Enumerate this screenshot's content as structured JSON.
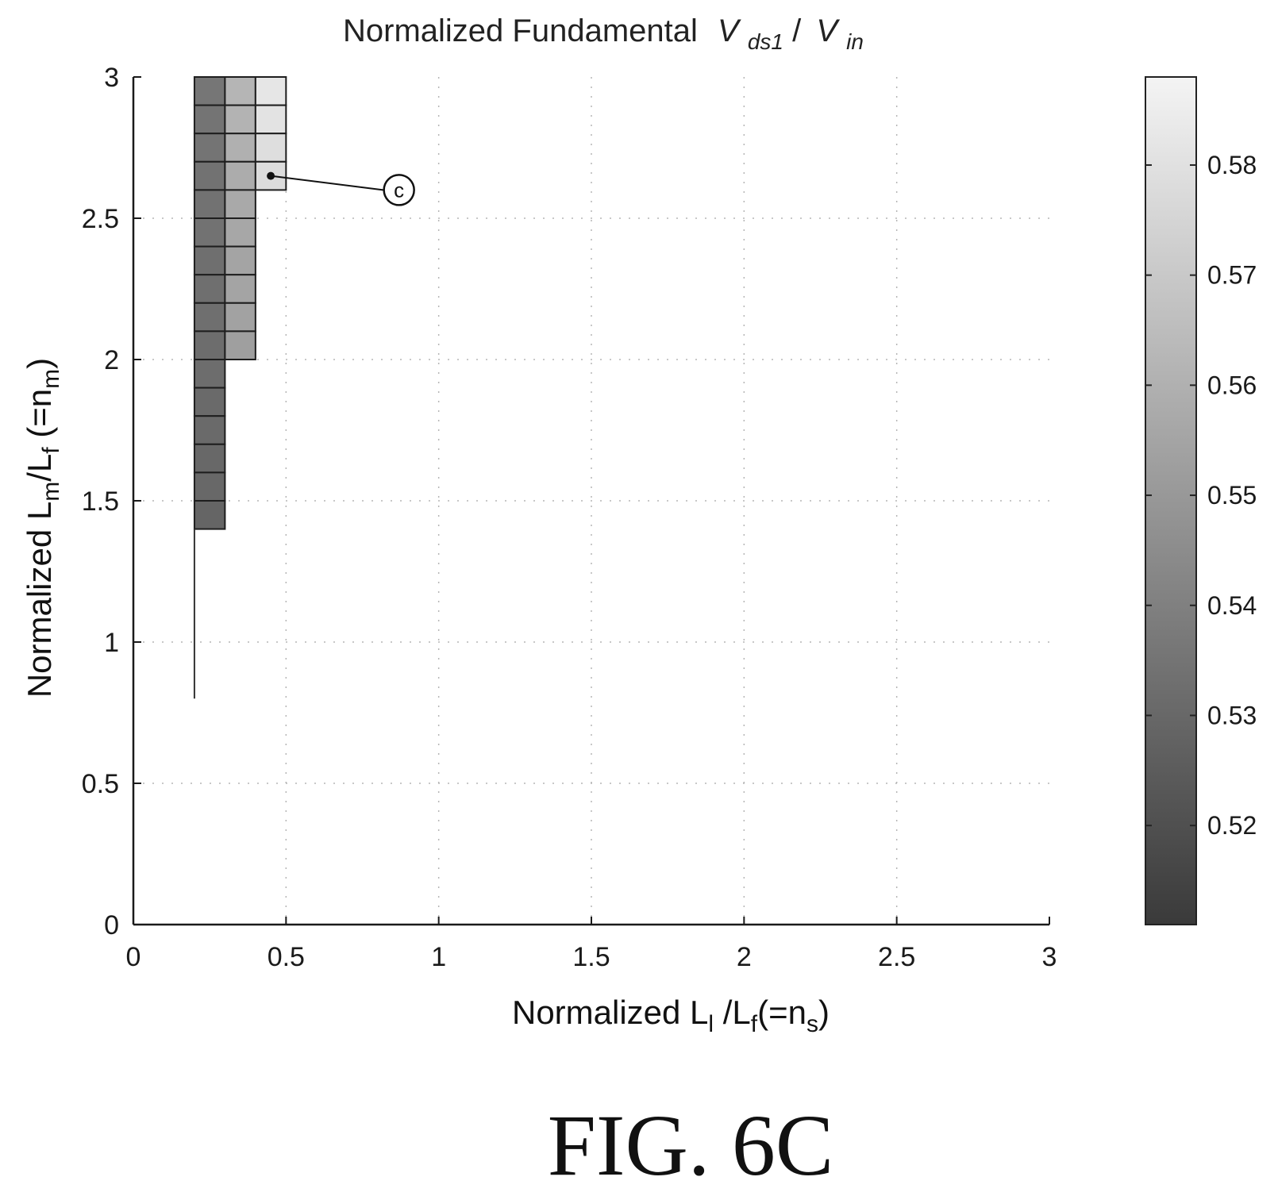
{
  "chart_data": {
    "type": "heatmap",
    "title_text": "Normalized Fundamental",
    "title_var1": "V",
    "title_var1_sub": "ds1",
    "title_sep": "/",
    "title_var2": "V",
    "title_var2_sub": "in",
    "xlabel": {
      "prefix": "Normalized L",
      "sub1": "l",
      "mid": " /L",
      "sub2": "f",
      "eq": "(=n",
      "sub3": "s",
      "close": ")"
    },
    "ylabel": {
      "prefix": "Normalized L",
      "sub1": "m",
      "mid": "/L",
      "sub2": "f",
      "eq": " (=n",
      "sub3": "m",
      "close": ")"
    },
    "xlim": [
      0,
      3
    ],
    "ylim": [
      0,
      3
    ],
    "xticks": [
      0,
      0.5,
      1,
      1.5,
      2,
      2.5,
      3
    ],
    "yticks": [
      0,
      0.5,
      1,
      1.5,
      2,
      2.5,
      3
    ],
    "xtick_labels": [
      "0",
      "0.5",
      "1",
      "1.5",
      "2",
      "2.5",
      "3"
    ],
    "ytick_labels": [
      "0",
      "0.5",
      "1",
      "1.5",
      "2",
      "2.5",
      "3"
    ],
    "grid": "dotted",
    "colorbar": {
      "range": [
        0.511,
        0.588
      ],
      "ticks": [
        0.52,
        0.53,
        0.54,
        0.55,
        0.56,
        0.57,
        0.58
      ],
      "tick_labels": [
        "0.52",
        "0.53",
        "0.54",
        "0.55",
        "0.56",
        "0.57",
        "0.58"
      ],
      "colormap": "gray"
    },
    "cell_width": 0.1,
    "cell_height": 0.1,
    "cells": [
      {
        "x": 0.2,
        "y": 2.9,
        "v": 0.536
      },
      {
        "x": 0.2,
        "y": 2.8,
        "v": 0.535
      },
      {
        "x": 0.2,
        "y": 2.7,
        "v": 0.535
      },
      {
        "x": 0.2,
        "y": 2.6,
        "v": 0.534
      },
      {
        "x": 0.2,
        "y": 2.5,
        "v": 0.534
      },
      {
        "x": 0.2,
        "y": 2.4,
        "v": 0.534
      },
      {
        "x": 0.2,
        "y": 2.3,
        "v": 0.533
      },
      {
        "x": 0.2,
        "y": 2.2,
        "v": 0.533
      },
      {
        "x": 0.2,
        "y": 2.1,
        "v": 0.533
      },
      {
        "x": 0.2,
        "y": 2.0,
        "v": 0.532
      },
      {
        "x": 0.2,
        "y": 1.9,
        "v": 0.532
      },
      {
        "x": 0.2,
        "y": 1.8,
        "v": 0.531
      },
      {
        "x": 0.2,
        "y": 1.7,
        "v": 0.531
      },
      {
        "x": 0.2,
        "y": 1.6,
        "v": 0.53
      },
      {
        "x": 0.2,
        "y": 1.5,
        "v": 0.53
      },
      {
        "x": 0.2,
        "y": 1.4,
        "v": 0.529
      },
      {
        "x": 0.3,
        "y": 2.9,
        "v": 0.562
      },
      {
        "x": 0.3,
        "y": 2.8,
        "v": 0.561
      },
      {
        "x": 0.3,
        "y": 2.7,
        "v": 0.56
      },
      {
        "x": 0.3,
        "y": 2.6,
        "v": 0.558
      },
      {
        "x": 0.3,
        "y": 2.5,
        "v": 0.557
      },
      {
        "x": 0.3,
        "y": 2.4,
        "v": 0.556
      },
      {
        "x": 0.3,
        "y": 2.3,
        "v": 0.555
      },
      {
        "x": 0.3,
        "y": 2.2,
        "v": 0.555
      },
      {
        "x": 0.3,
        "y": 2.1,
        "v": 0.554
      },
      {
        "x": 0.3,
        "y": 2.0,
        "v": 0.553
      },
      {
        "x": 0.4,
        "y": 2.9,
        "v": 0.582
      },
      {
        "x": 0.4,
        "y": 2.8,
        "v": 0.581
      },
      {
        "x": 0.4,
        "y": 2.7,
        "v": 0.579
      },
      {
        "x": 0.4,
        "y": 2.6,
        "v": 0.578
      }
    ],
    "vertical_segment": {
      "x": 0.2,
      "y_from": 0.8,
      "y_to": 1.4
    },
    "annotation": {
      "label": "c",
      "point_x": 0.45,
      "point_y": 2.65,
      "label_x": 0.87,
      "label_y": 2.6
    },
    "figure_label": "FIG. 6C"
  }
}
